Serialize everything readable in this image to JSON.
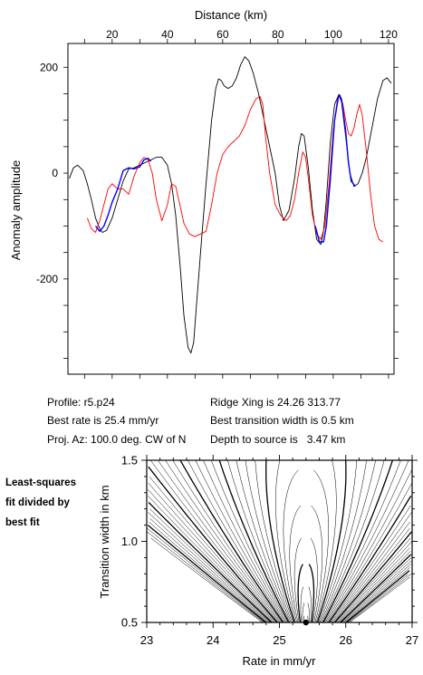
{
  "profile_chart": {
    "type": "line",
    "xlabel": "Distance (km)",
    "ylabel": "Anomaly amplitude",
    "xlim": [
      4,
      122
    ],
    "ylim": [
      -380,
      245
    ],
    "x_ticks": [
      20,
      40,
      60,
      80,
      100,
      120
    ],
    "y_ticks": [
      200,
      0,
      -200
    ],
    "x_tick_labels": [
      "20",
      "40",
      "60",
      "80",
      "100",
      "120"
    ],
    "y_tick_labels": [
      "200",
      "0",
      "-200"
    ],
    "series": [
      {
        "color": "#000000",
        "x": [
          4.5,
          6,
          7.5,
          9.5,
          11,
          12.5,
          14,
          15.5,
          16.5,
          18,
          20,
          22,
          24,
          26,
          28,
          30,
          32,
          34,
          36,
          38,
          40,
          41.5,
          43,
          44.5,
          46,
          47.5,
          48.5,
          49.5,
          50.5,
          52,
          54,
          56,
          57.5,
          58.5,
          59.5,
          60.5,
          62,
          63.5,
          65,
          66.5,
          68,
          69.5,
          71,
          73,
          75,
          77,
          79,
          80.5,
          82,
          84,
          86,
          87.5,
          88.5,
          89.5,
          91,
          92.5,
          94,
          95.5,
          96.5,
          97.5,
          99,
          100.5,
          102,
          103,
          104.5,
          106,
          107.5,
          109,
          110.5,
          112,
          114,
          116,
          118,
          119.5,
          121
        ],
        "y": [
          -10,
          10,
          15,
          5,
          -20,
          -50,
          -85,
          -105,
          -112,
          -108,
          -85,
          -50,
          -15,
          8,
          10,
          15,
          20,
          25,
          30,
          30,
          15,
          -20,
          -80,
          -170,
          -270,
          -330,
          -340,
          -320,
          -250,
          -150,
          -20,
          100,
          160,
          178,
          175,
          165,
          160,
          165,
          180,
          205,
          220,
          212,
          190,
          150,
          100,
          50,
          0,
          -60,
          -90,
          -70,
          -10,
          50,
          75,
          70,
          10,
          -70,
          -125,
          -135,
          -110,
          -50,
          60,
          130,
          148,
          135,
          70,
          0,
          -25,
          -20,
          0,
          30,
          85,
          140,
          175,
          180,
          170
        ]
      },
      {
        "color": "#ff0000",
        "x": [
          11,
          12.5,
          14,
          15.5,
          17,
          18.5,
          20,
          22,
          24,
          26,
          28,
          30,
          31.5,
          33,
          34.5,
          36,
          38,
          40,
          41.5,
          43,
          44.5,
          46,
          48,
          50,
          52,
          54,
          56,
          58,
          60,
          62,
          64,
          66,
          68,
          70,
          72,
          73.5,
          74.5,
          75.5,
          77,
          79,
          81,
          83,
          84.5,
          86,
          87.5,
          89,
          90,
          91,
          92.5,
          94,
          95.5,
          97,
          98.5,
          100,
          101.5,
          102.5,
          103.5,
          104.5,
          105.5,
          106.5,
          107.5,
          108.5,
          109.5,
          110.5,
          112,
          113.5,
          115,
          116.5,
          118
        ],
        "y": [
          -85,
          -105,
          -112,
          -90,
          -60,
          -30,
          -20,
          -30,
          -30,
          -40,
          -5,
          20,
          30,
          25,
          0,
          -50,
          -90,
          -60,
          -20,
          -25,
          -60,
          -95,
          -115,
          -120,
          -115,
          -110,
          -60,
          0,
          35,
          50,
          60,
          70,
          90,
          120,
          140,
          145,
          130,
          70,
          0,
          -60,
          -80,
          -90,
          -80,
          -50,
          0,
          40,
          30,
          -10,
          -80,
          -115,
          -125,
          -100,
          -20,
          80,
          140,
          148,
          130,
          100,
          75,
          70,
          85,
          110,
          130,
          110,
          40,
          -40,
          -100,
          -125,
          -130
        ]
      },
      {
        "color": "#0000ff",
        "x": [
          14,
          15.5,
          17,
          18.5,
          20,
          22,
          24,
          26,
          28,
          30,
          31.5,
          33,
          34
        ],
        "y": [
          -100,
          -110,
          -100,
          -80,
          -55,
          -30,
          5,
          10,
          8,
          12,
          25,
          28,
          22
        ]
      },
      {
        "color": "#0000ff",
        "x": [
          93.5,
          95,
          96.5,
          97.5,
          99,
          100.5,
          102,
          103,
          104.5,
          105.5,
          106.5,
          108
        ],
        "y": [
          -100,
          -130,
          -130,
          -100,
          -10,
          100,
          148,
          140,
          80,
          20,
          -15,
          -25
        ]
      }
    ]
  },
  "contour_chart": {
    "type": "contour",
    "xlabel": "Rate in mm/yr",
    "ylabel": "Transition width in km",
    "xlim": [
      23,
      27
    ],
    "ylim": [
      0.5,
      1.5
    ],
    "x_tick_labels": [
      "23",
      "24",
      "25",
      "26",
      "27"
    ],
    "y_tick_labels": [
      "1.5",
      "1.0",
      "0.5"
    ],
    "best_fit_point": {
      "rate": 25.4,
      "width": 0.5
    }
  },
  "info": {
    "profile": "Profile: r5.p24",
    "best_rate": "Best rate is 25.4 mm/yr",
    "proj_az": "Proj. Az: 100.0 deg. CW of N",
    "ridge_xing": "Ridge Xing is 24.26 313.77",
    "best_transition": "Best transition width is 0.5 km",
    "depth": "Depth to source is   3.47 km"
  },
  "side_title": [
    "Least-squares",
    "fit divided by",
    "best fit"
  ]
}
